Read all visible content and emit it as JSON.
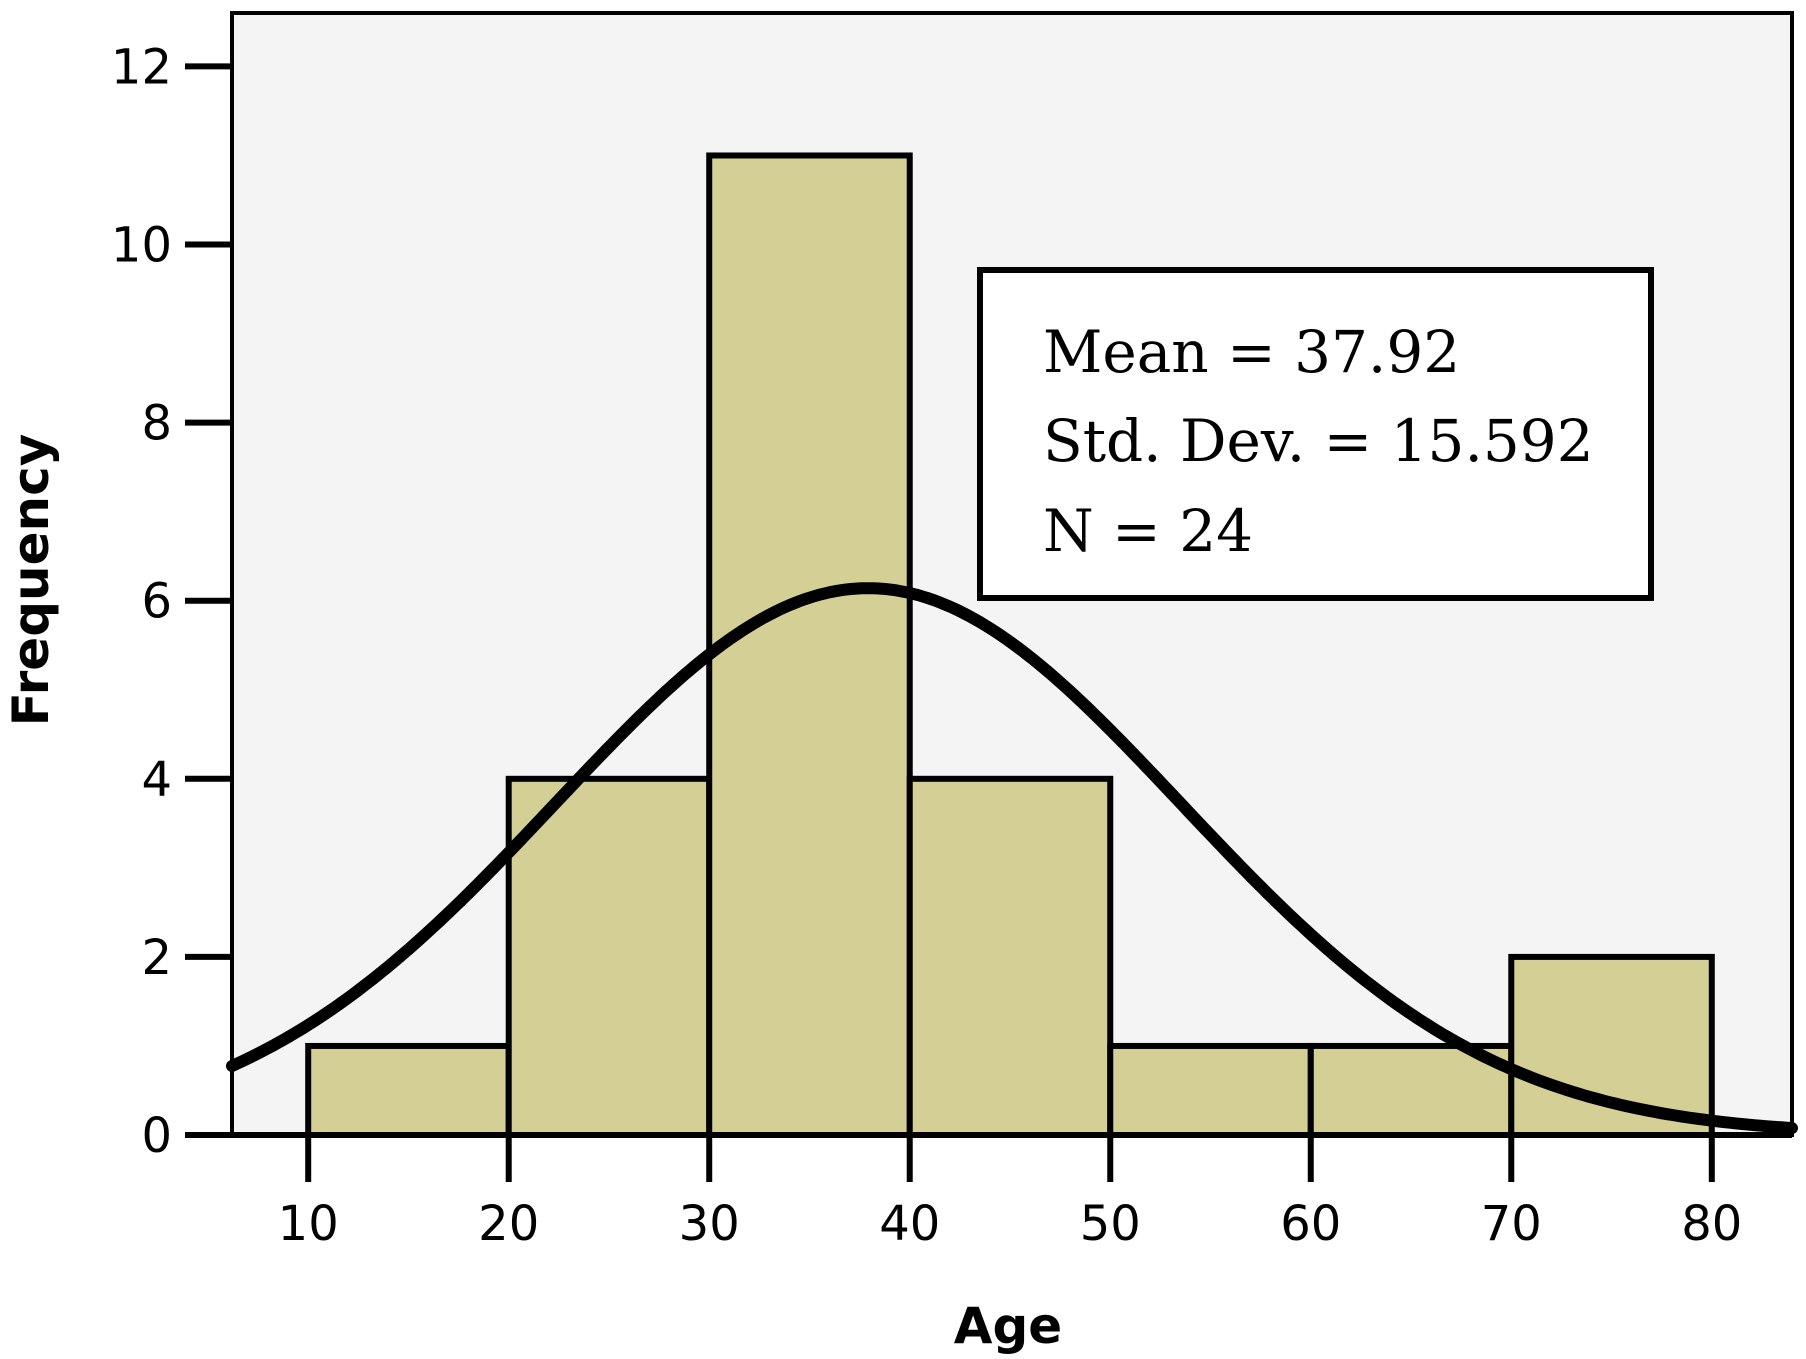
{
  "chart_data": {
    "type": "histogram",
    "xlabel": "Age",
    "ylabel": "Frequency",
    "xlim": [
      6.2,
      84
    ],
    "ylim": [
      0,
      12.6
    ],
    "xticks": [
      10,
      20,
      30,
      40,
      50,
      60,
      70,
      80
    ],
    "yticks": [
      0,
      2,
      4,
      6,
      8,
      10,
      12
    ],
    "bins": [
      {
        "from": 10,
        "to": 20,
        "count": 1
      },
      {
        "from": 20,
        "to": 30,
        "count": 4
      },
      {
        "from": 30,
        "to": 40,
        "count": 11
      },
      {
        "from": 40,
        "to": 50,
        "count": 4
      },
      {
        "from": 50,
        "to": 60,
        "count": 1
      },
      {
        "from": 60,
        "to": 70,
        "count": 1
      },
      {
        "from": 70,
        "to": 80,
        "count": 2
      }
    ],
    "normal_curve": {
      "mean": 37.92,
      "sd": 15.592,
      "n": 24,
      "bin_width": 10
    },
    "stats": {
      "mean_label": "Mean = 37.92",
      "sd_label": "Std. Dev. = 15.592",
      "n_label": "N = 24"
    },
    "colors": {
      "plot_background": "#f4f4f4",
      "bar_fill": "#d4cf95",
      "stroke": "#000000"
    }
  }
}
